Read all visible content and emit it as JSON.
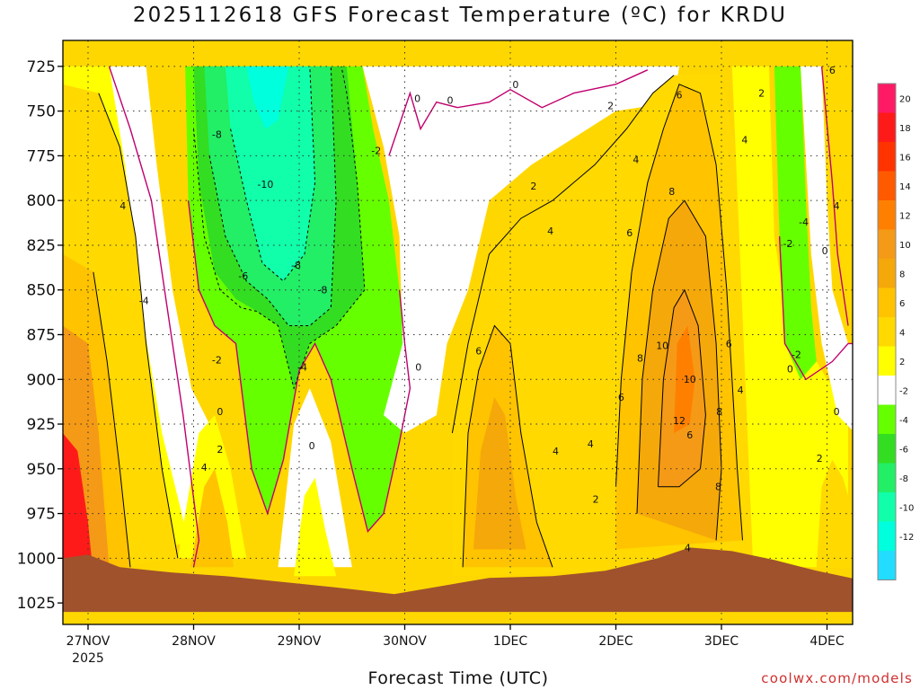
{
  "chart_data": {
    "type": "heatmap",
    "title": "2025112618 GFS Forecast Temperature (ºC) for KRDU",
    "xlabel": "Forecast Time (UTC)",
    "ylabel": "",
    "credit": "coolwx.com/models",
    "y_levels": [
      725,
      750,
      775,
      800,
      825,
      850,
      875,
      900,
      925,
      950,
      975,
      1000,
      1025
    ],
    "ylim": [
      725,
      1025
    ],
    "y_inverted": true,
    "x_ticks": [
      {
        "label": "27NOV",
        "sub": "2025"
      },
      {
        "label": "28NOV",
        "sub": ""
      },
      {
        "label": "29NOV",
        "sub": ""
      },
      {
        "label": "30NOV",
        "sub": ""
      },
      {
        "label": "1DEC",
        "sub": ""
      },
      {
        "label": "2DEC",
        "sub": ""
      },
      {
        "label": "3DEC",
        "sub": ""
      },
      {
        "label": "4DEC",
        "sub": ""
      }
    ],
    "grid": true,
    "colorbar": [
      {
        "label": "20",
        "color": "#ff1a66"
      },
      {
        "label": "18",
        "color": "#ff1a1a"
      },
      {
        "label": "16",
        "color": "#ff3300"
      },
      {
        "label": "14",
        "color": "#ff5a00"
      },
      {
        "label": "12",
        "color": "#ff8000"
      },
      {
        "label": "10",
        "color": "#f59a16"
      },
      {
        "label": "8",
        "color": "#f5a80a"
      },
      {
        "label": "6",
        "color": "#ffc300"
      },
      {
        "label": "4",
        "color": "#ffd900"
      },
      {
        "label": "2",
        "color": "#ffff00"
      },
      {
        "label": "-2",
        "color": "#ffffff"
      },
      {
        "label": "-4",
        "color": "#66ff00"
      },
      {
        "label": "-6",
        "color": "#33dd22"
      },
      {
        "label": "-8",
        "color": "#22ee66"
      },
      {
        "label": "-10",
        "color": "#11ffaa"
      },
      {
        "label": "-12",
        "color": "#00ffdd"
      },
      {
        "label": "",
        "color": "#22ddff"
      }
    ],
    "contour_labels": [
      {
        "t": 0.33,
        "p": 805,
        "v": "4"
      },
      {
        "t": 0.53,
        "p": 858,
        "v": "-4"
      },
      {
        "t": 1.22,
        "p": 765,
        "v": "-8"
      },
      {
        "t": 1.68,
        "p": 793,
        "v": "-10"
      },
      {
        "t": 1.97,
        "p": 838,
        "v": "-8"
      },
      {
        "t": 1.47,
        "p": 844,
        "v": "-6"
      },
      {
        "t": 2.22,
        "p": 852,
        "v": "-8"
      },
      {
        "t": 2.03,
        "p": 895,
        "v": "-4"
      },
      {
        "t": 1.22,
        "p": 891,
        "v": "-2"
      },
      {
        "t": 1.25,
        "p": 920,
        "v": "0"
      },
      {
        "t": 1.25,
        "p": 941,
        "v": "2"
      },
      {
        "t": 1.1,
        "p": 951,
        "v": "4"
      },
      {
        "t": 2.12,
        "p": 939,
        "v": "0"
      },
      {
        "t": 2.73,
        "p": 774,
        "v": "-2"
      },
      {
        "t": 3.12,
        "p": 745,
        "v": "0"
      },
      {
        "t": 3.43,
        "p": 746,
        "v": "0"
      },
      {
        "t": 4.05,
        "p": 737,
        "v": "0"
      },
      {
        "t": 4.22,
        "p": 794,
        "v": "2"
      },
      {
        "t": 3.13,
        "p": 895,
        "v": "0"
      },
      {
        "t": 3.7,
        "p": 886,
        "v": "6"
      },
      {
        "t": 4.38,
        "p": 819,
        "v": "4"
      },
      {
        "t": 4.43,
        "p": 942,
        "v": "4"
      },
      {
        "t": 4.95,
        "p": 749,
        "v": "2"
      },
      {
        "t": 5.19,
        "p": 779,
        "v": "4"
      },
      {
        "t": 5.53,
        "p": 797,
        "v": "8"
      },
      {
        "t": 5.13,
        "p": 820,
        "v": "6"
      },
      {
        "t": 5.6,
        "p": 743,
        "v": "6"
      },
      {
        "t": 6.22,
        "p": 768,
        "v": "4"
      },
      {
        "t": 6.38,
        "p": 742,
        "v": "2"
      },
      {
        "t": 5.44,
        "p": 883,
        "v": "10"
      },
      {
        "t": 5.23,
        "p": 890,
        "v": "8"
      },
      {
        "t": 5.05,
        "p": 912,
        "v": "6"
      },
      {
        "t": 5.6,
        "p": 925,
        "v": "12"
      },
      {
        "t": 5.7,
        "p": 902,
        "v": "10"
      },
      {
        "t": 6.07,
        "p": 882,
        "v": "6"
      },
      {
        "t": 6.18,
        "p": 908,
        "v": "4"
      },
      {
        "t": 5.98,
        "p": 920,
        "v": "8"
      },
      {
        "t": 5.7,
        "p": 933,
        "v": "6"
      },
      {
        "t": 5.97,
        "p": 962,
        "v": "8"
      },
      {
        "t": 4.76,
        "p": 938,
        "v": "4"
      },
      {
        "t": 4.81,
        "p": 969,
        "v": "2"
      },
      {
        "t": 5.68,
        "p": 996,
        "v": "4"
      },
      {
        "t": 6.63,
        "p": 826,
        "v": "-2"
      },
      {
        "t": 6.98,
        "p": 830,
        "v": "0"
      },
      {
        "t": 7.09,
        "p": 805,
        "v": "4"
      },
      {
        "t": 6.65,
        "p": 896,
        "v": "0"
      },
      {
        "t": 6.71,
        "p": 888,
        "v": "-2"
      },
      {
        "t": 6.78,
        "p": 814,
        "v": "-4"
      },
      {
        "t": 7.05,
        "p": 729,
        "v": "6"
      },
      {
        "t": 6.93,
        "p": 946,
        "v": "2"
      },
      {
        "t": 7.09,
        "p": 920,
        "v": "0"
      }
    ]
  }
}
